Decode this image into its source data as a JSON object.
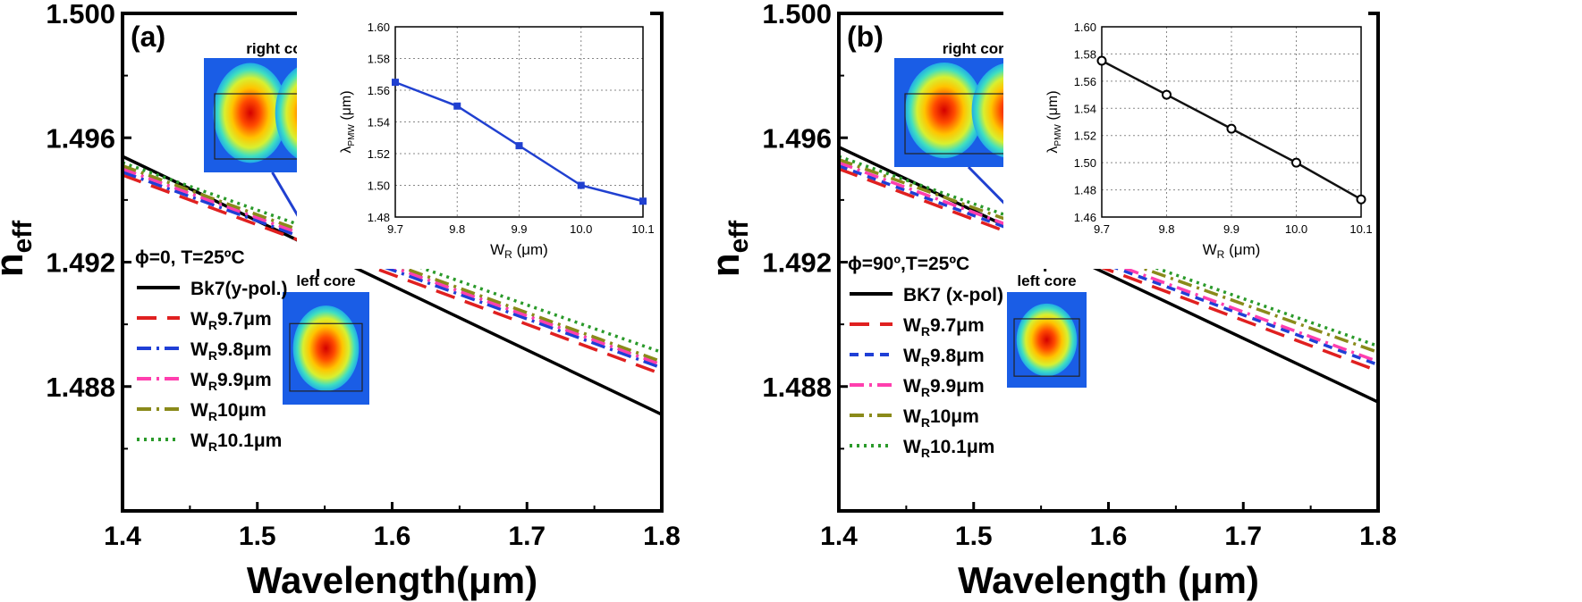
{
  "chart_data": [
    {
      "type": "line",
      "panel_label": "(a)",
      "xlabel": "Wavelength(μm)",
      "ylabel": "n",
      "ylabel_sub": "eff",
      "xlim": [
        1.4,
        1.8
      ],
      "ylim": [
        1.484,
        1.5
      ],
      "xticks": [
        "1.4",
        "1.5",
        "1.6",
        "1.7",
        "1.8"
      ],
      "yticks": [
        "1.488",
        "1.492",
        "1.496",
        "1.500"
      ],
      "condition_text": "ϕ=0, T=25ºC",
      "series": [
        {
          "name": "Bk7(y-pol.)",
          "color": "#000000",
          "dash": "solid",
          "x": [
            1.4,
            1.8
          ],
          "y": [
            1.4954,
            1.4871
          ]
        },
        {
          "name": "9.7μm",
          "color": "#e02020",
          "dash": "long-dash",
          "x": [
            1.4,
            1.8
          ],
          "y": [
            1.4948,
            1.4884
          ]
        },
        {
          "name": "9.8μm",
          "color": "#1f3fd6",
          "dash": "dash-dot",
          "x": [
            1.4,
            1.8
          ],
          "y": [
            1.4949,
            1.4886
          ]
        },
        {
          "name": "9.9μm",
          "color": "#ff3fae",
          "dash": "dash-dot",
          "x": [
            1.4,
            1.8
          ],
          "y": [
            1.495,
            1.4887
          ]
        },
        {
          "name": "10μm",
          "color": "#8a8a1a",
          "dash": "dash-dot",
          "x": [
            1.4,
            1.8
          ],
          "y": [
            1.4951,
            1.4888
          ]
        },
        {
          "name": "10.1μm",
          "color": "#2a9a2a",
          "dash": "dotted",
          "x": [
            1.4,
            1.8
          ],
          "y": [
            1.4952,
            1.4891
          ]
        }
      ],
      "legend_prefix": "W",
      "legend_sub": "R",
      "legend_placement": "left-middle",
      "mode_labels": {
        "top": "right core",
        "bottom": "left core"
      },
      "inset": {
        "type": "line",
        "xlabel": "W",
        "xlabel_sub": "R",
        "xlabel_unit": " (μm)",
        "ylabel": "λ",
        "ylabel_sub": "PMW",
        "ylabel_unit": " (μm)",
        "color": "#2040d0",
        "marker": "square",
        "xlim": [
          9.7,
          10.1
        ],
        "ylim": [
          1.48,
          1.6
        ],
        "xticks": [
          "9.7",
          "9.8",
          "9.9",
          "10.0",
          "10.1"
        ],
        "yticks": [
          "1.48",
          "1.50",
          "1.52",
          "1.54",
          "1.56",
          "1.58",
          "1.60"
        ],
        "x": [
          9.7,
          9.8,
          9.9,
          10.0,
          10.1
        ],
        "y": [
          1.565,
          1.55,
          1.525,
          1.5,
          1.49
        ]
      }
    },
    {
      "type": "line",
      "panel_label": "(b)",
      "xlabel": "Wavelength (μm)",
      "ylabel": "n",
      "ylabel_sub": "eff",
      "xlim": [
        1.4,
        1.8
      ],
      "ylim": [
        1.484,
        1.5
      ],
      "xticks": [
        "1.4",
        "1.5",
        "1.6",
        "1.7",
        "1.8"
      ],
      "yticks": [
        "1.488",
        "1.492",
        "1.496",
        "1.500"
      ],
      "condition_text": "ϕ=90º,T=25ºC",
      "series": [
        {
          "name": "BK7 (x-pol)",
          "color": "#000000",
          "dash": "solid",
          "x": [
            1.4,
            1.8
          ],
          "y": [
            1.4957,
            1.4875
          ]
        },
        {
          "name": "9.7μm",
          "color": "#e02020",
          "dash": "long-dash",
          "x": [
            1.4,
            1.8
          ],
          "y": [
            1.495,
            1.4885
          ]
        },
        {
          "name": "9.8μm",
          "color": "#1f3fd6",
          "dash": "short-dash",
          "x": [
            1.4,
            1.8
          ],
          "y": [
            1.4951,
            1.4887
          ]
        },
        {
          "name": "9.9μm",
          "color": "#ff3fae",
          "dash": "dash-dot",
          "x": [
            1.4,
            1.8
          ],
          "y": [
            1.4952,
            1.4888
          ]
        },
        {
          "name": "10μm",
          "color": "#8a8a1a",
          "dash": "dash-dot",
          "x": [
            1.4,
            1.8
          ],
          "y": [
            1.4953,
            1.4891
          ]
        },
        {
          "name": "10.1μm",
          "color": "#2a9a2a",
          "dash": "dotted",
          "x": [
            1.4,
            1.8
          ],
          "y": [
            1.4954,
            1.4893
          ]
        }
      ],
      "legend_prefix": "W",
      "legend_sub": "R",
      "legend_placement": "left-middle",
      "mode_labels": {
        "top": "right core",
        "bottom": "left core"
      },
      "inset": {
        "type": "line",
        "xlabel": "W",
        "xlabel_sub": "R",
        "xlabel_unit": " (μm)",
        "ylabel": "λ",
        "ylabel_sub": "PMW",
        "ylabel_unit": " (μm)",
        "color": "#111111",
        "marker": "circle",
        "xlim": [
          9.7,
          10.1
        ],
        "ylim": [
          1.46,
          1.6
        ],
        "xticks": [
          "9.7",
          "9.8",
          "9.9",
          "10.0",
          "10.1"
        ],
        "yticks": [
          "1.46",
          "1.48",
          "1.50",
          "1.52",
          "1.54",
          "1.56",
          "1.58",
          "1.60"
        ],
        "x": [
          9.7,
          9.8,
          9.9,
          10.0,
          10.1
        ],
        "y": [
          1.575,
          1.55,
          1.525,
          1.5,
          1.473
        ]
      }
    }
  ]
}
